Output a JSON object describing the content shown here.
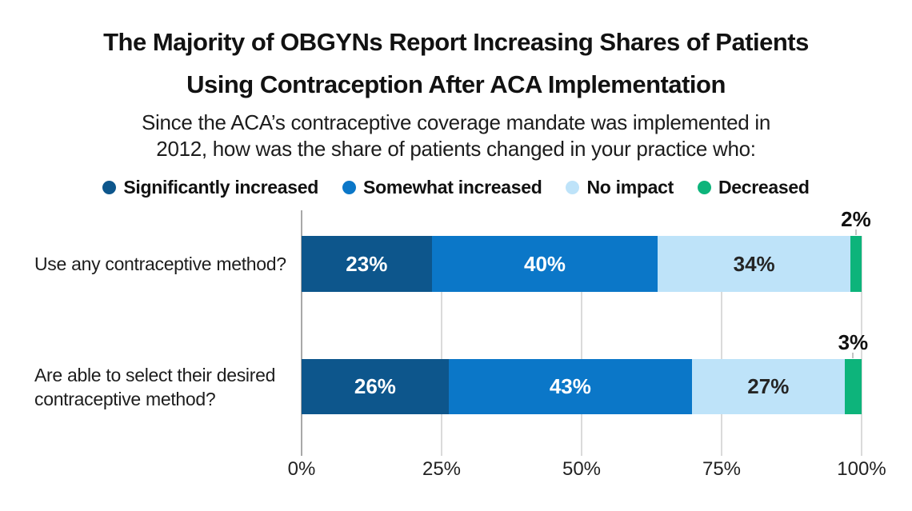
{
  "title": {
    "lines": [
      "The Majority of OBGYNs Report Increasing Shares of Patients",
      "Using Contraception After ACA Implementation"
    ]
  },
  "subtitle": {
    "lines": [
      "Since the ACA’s contraceptive coverage mandate was implemented in",
      "2012, how was the share of patients changed in your practice who:"
    ]
  },
  "colors": {
    "background": "#ffffff",
    "title_text": "#121212",
    "body_text": "#1d1d1d",
    "gridline": "#dadada",
    "zero_axis_line": "#a8a8a8",
    "leader_line": "#c4c4c4",
    "tick_text": "#222222"
  },
  "chart_data": {
    "type": "bar",
    "orientation": "horizontal",
    "stacked": true,
    "normalized_to_full_width": true,
    "legend_position": "top",
    "grid": true,
    "categories": [
      "Use any contraceptive method?",
      "Are able to select their desired contraceptive method?"
    ],
    "series": [
      {
        "name": "Significantly increased",
        "color": "#0d568c",
        "label_color": "#ffffff",
        "label_position": "inside",
        "values": [
          23,
          26
        ]
      },
      {
        "name": "Somewhat increased",
        "color": "#0b77c8",
        "label_color": "#ffffff",
        "label_position": "inside",
        "values": [
          40,
          43
        ]
      },
      {
        "name": "No impact",
        "color": "#bee3f9",
        "label_color": "#252525",
        "label_position": "inside",
        "values": [
          34,
          27
        ]
      },
      {
        "name": "Decreased",
        "color": "#0db47b",
        "label_color": "#111111",
        "label_position": "above",
        "values": [
          2,
          3
        ]
      }
    ],
    "label_format": "percent",
    "x_axis": {
      "min": 0,
      "max": 100,
      "ticks": [
        "0%",
        "25%",
        "50%",
        "75%",
        "100%"
      ]
    }
  }
}
